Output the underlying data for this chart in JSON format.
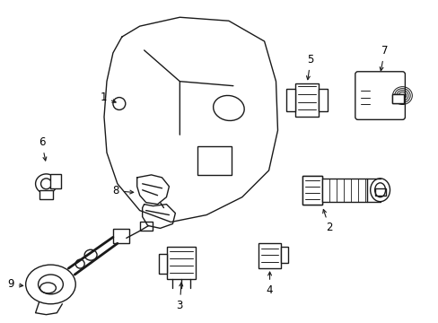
{
  "background_color": "#ffffff",
  "line_color": "#1a1a1a",
  "line_width": 1.0,
  "label_fontsize": 8.5,
  "fig_width": 4.89,
  "fig_height": 3.6,
  "dpi": 100
}
